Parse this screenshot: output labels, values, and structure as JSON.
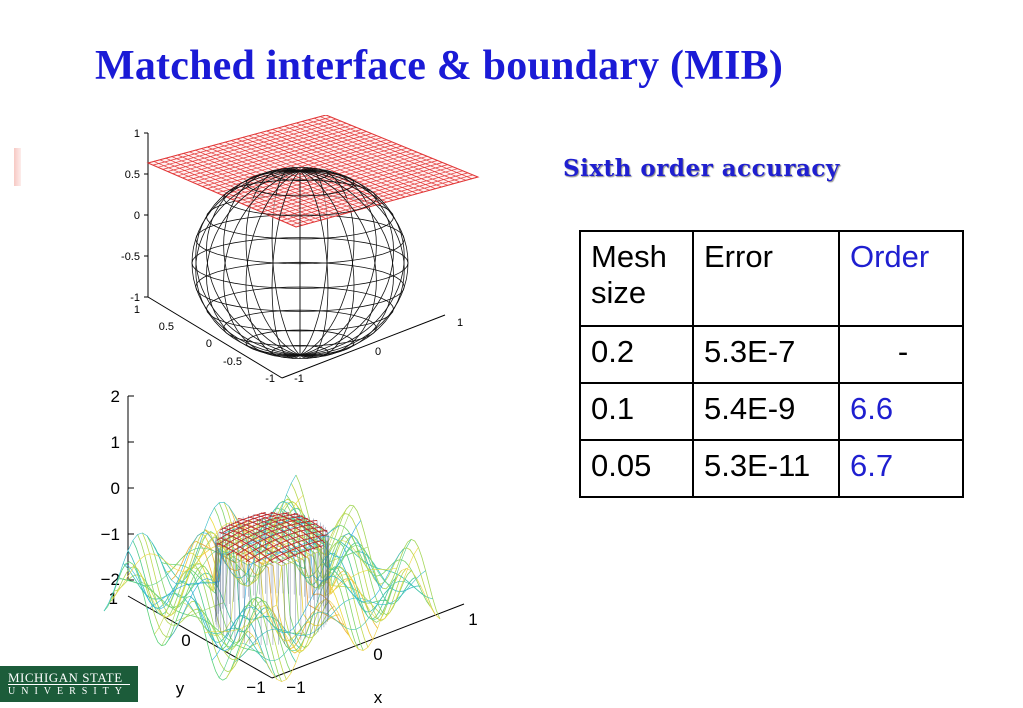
{
  "slide": {
    "title": "Matched interface & boundary (MIB)",
    "subtitle": "Sixth order accuracy"
  },
  "sphere_plot": {
    "z_ticks": [
      "1",
      "0.5",
      "0",
      "-0.5",
      "-1"
    ],
    "y_ticks": [
      "1",
      "0.5",
      "0",
      "-0.5",
      "-1"
    ],
    "x_ticks": [
      "1",
      "0",
      "-1"
    ]
  },
  "surface_plot": {
    "z_ticks": [
      "2",
      "1",
      "0",
      "−1",
      "−2"
    ],
    "y_ticks": [
      "1",
      "0",
      "−1"
    ],
    "x_ticks": [
      "1",
      "0",
      "−1"
    ],
    "y_label": "y",
    "x_label": "x"
  },
  "table": {
    "headers": [
      "Mesh size",
      "Error",
      "Order"
    ],
    "rows": [
      [
        "0.2",
        "5.3E-7",
        "-"
      ],
      [
        "0.1",
        "5.4E-9",
        "6.6"
      ],
      [
        "0.05",
        "5.3E-11",
        "6.7"
      ]
    ]
  },
  "logo": {
    "line1": "MICHIGAN STATE",
    "line2": "UNIVERSITY"
  },
  "colors": {
    "title": "#1a1ad6",
    "accent_blue": "#1f1fd0",
    "mesh_red": "#e23a3a",
    "logo_green": "#1c5c3a"
  }
}
